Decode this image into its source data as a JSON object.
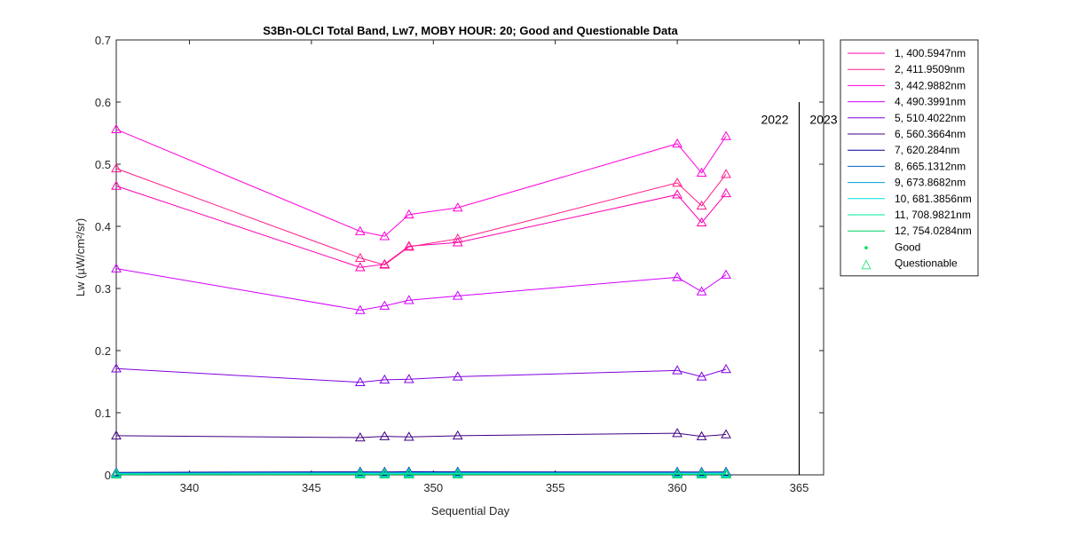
{
  "chart_data": {
    "type": "line",
    "title": "S3Bn-OLCI Total Band,  Lw7, MOBY HOUR: 20;  Good and Questionable Data",
    "xlabel": "Sequential Day",
    "ylabel": "Lw (µW/cm²/sr)",
    "xlim": [
      337,
      366
    ],
    "ylim": [
      0,
      0.7
    ],
    "xticks": [
      340,
      345,
      350,
      355,
      360,
      365
    ],
    "yticks": [
      0,
      0.1,
      0.2,
      0.3,
      0.4,
      0.5,
      0.6,
      0.7
    ],
    "grid": false,
    "legend_position": "outside-right",
    "x": [
      337,
      347,
      348,
      349,
      351,
      360,
      361,
      362
    ],
    "series": [
      {
        "name": "1, 400.5947nm",
        "color": "#ff00b4",
        "values": [
          0.465,
          0.334,
          0.339,
          0.368,
          0.374,
          0.451,
          0.406,
          0.453
        ]
      },
      {
        "name": "2, 411.9509nm",
        "color": "#ff1a88",
        "values": [
          0.493,
          0.349,
          0.338,
          0.367,
          0.38,
          0.47,
          0.433,
          0.484
        ]
      },
      {
        "name": "3, 442.9882nm",
        "color": "#ff00dc",
        "values": [
          0.556,
          0.392,
          0.384,
          0.419,
          0.43,
          0.533,
          0.486,
          0.545
        ]
      },
      {
        "name": "4, 490.3991nm",
        "color": "#d000ff",
        "values": [
          0.332,
          0.265,
          0.272,
          0.281,
          0.288,
          0.318,
          0.295,
          0.322
        ]
      },
      {
        "name": "5, 510.4022nm",
        "color": "#8000e0",
        "values": [
          0.171,
          0.149,
          0.153,
          0.154,
          0.158,
          0.168,
          0.158,
          0.17
        ]
      },
      {
        "name": "6, 560.3664nm",
        "color": "#400080",
        "values": [
          0.063,
          0.06,
          0.062,
          0.061,
          0.063,
          0.067,
          0.062,
          0.065
        ]
      },
      {
        "name": "7,  620.284nm",
        "color": "#0000a0",
        "values": [
          0.004,
          0.0048,
          0.0046,
          0.005,
          0.0048,
          0.0046,
          0.0045,
          0.0047
        ]
      },
      {
        "name": "8, 665.1312nm",
        "color": "#0060c0",
        "values": [
          0.003,
          0.0035,
          0.0034,
          0.0036,
          0.0035,
          0.0034,
          0.0033,
          0.0034
        ]
      },
      {
        "name": "9, 673.8682nm",
        "color": "#00a0e0",
        "values": [
          0.0025,
          0.003,
          0.0029,
          0.0031,
          0.003,
          0.0029,
          0.0028,
          0.003
        ]
      },
      {
        "name": "10, 681.3856nm",
        "color": "#00e0e0",
        "values": [
          0.0022,
          0.0027,
          0.0026,
          0.0028,
          0.0027,
          0.0026,
          0.0025,
          0.0027
        ]
      },
      {
        "name": "11, 708.9821nm",
        "color": "#00e8a0",
        "values": [
          0.001,
          0.0013,
          0.0012,
          0.0014,
          0.0013,
          0.0012,
          0.0012,
          0.0013
        ]
      },
      {
        "name": "12, 754.0284nm",
        "color": "#00d060",
        "values": [
          0.0004,
          0.0006,
          0.0005,
          0.0006,
          0.0006,
          0.0005,
          0.0005,
          0.0006
        ]
      }
    ],
    "marker_legend": [
      {
        "label": "Good",
        "symbol": "•",
        "color": "#00e060"
      },
      {
        "label": "Questionable",
        "symbol": "△",
        "color": "#00e060"
      }
    ],
    "year_divider": {
      "x": 365,
      "y_top": 0.6
    },
    "annotations": [
      {
        "text": "2022",
        "x": 364,
        "y": 0.565
      },
      {
        "text": "2023",
        "x": 366,
        "y": 0.565
      }
    ]
  }
}
